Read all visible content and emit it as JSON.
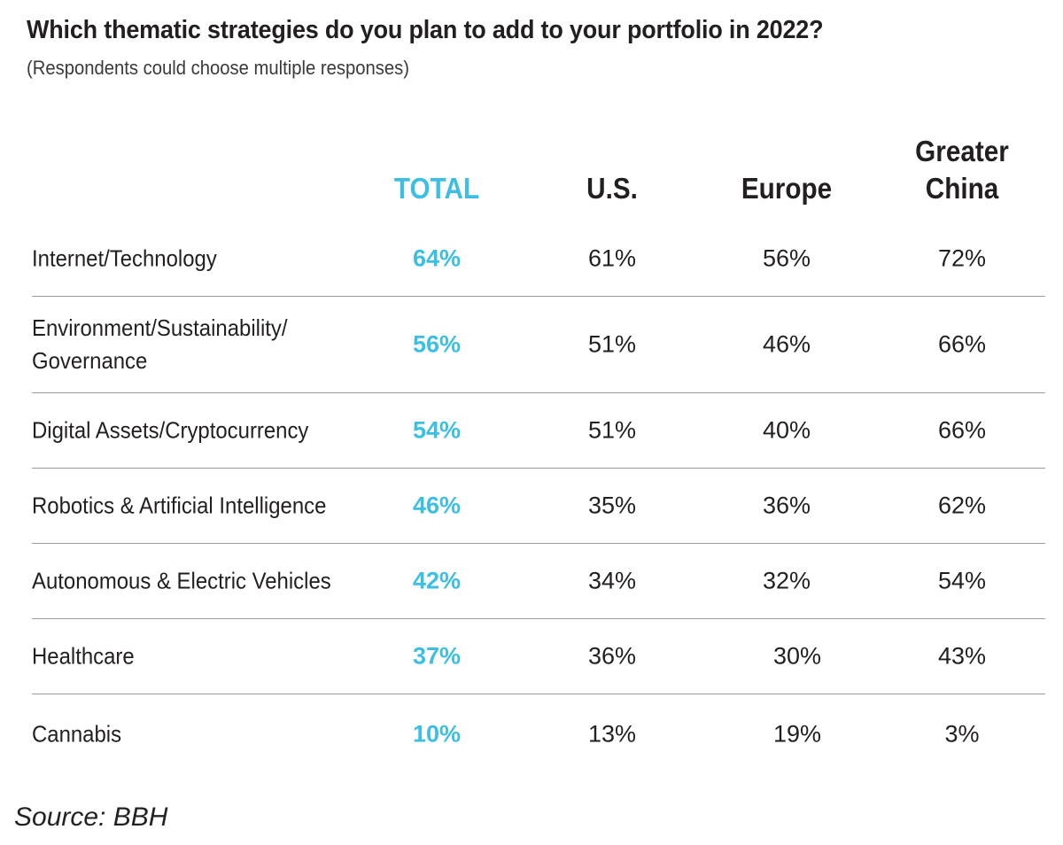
{
  "title": "Which thematic strategies do you plan to add to your portfolio in 2022?",
  "subtitle": "(Respondents could choose multiple responses)",
  "source": "Source: BBH",
  "colors": {
    "accent": "#3cbfe3",
    "text": "#231f20",
    "divider": "#9b9b9b"
  },
  "chart_data": {
    "type": "table",
    "title": "Which thematic strategies do you plan to add to your portfolio in 2022?",
    "subtitle": "(Respondents could choose multiple responses)",
    "columns": [
      "TOTAL",
      "U.S.",
      "Europe",
      "Greater China"
    ],
    "rows": [
      {
        "label": "Internet/Technology",
        "values": [
          "64%",
          "61%",
          "56%",
          "72%"
        ]
      },
      {
        "label": "Environment/Sustainability/\nGovernance",
        "values": [
          "56%",
          "51%",
          "46%",
          "66%"
        ]
      },
      {
        "label": "Digital Assets/Cryptocurrency",
        "values": [
          "54%",
          "51%",
          "40%",
          "66%"
        ]
      },
      {
        "label": "Robotics & Artificial Intelligence",
        "values": [
          "46%",
          "35%",
          "36%",
          "62%"
        ]
      },
      {
        "label": "Autonomous & Electric Vehicles",
        "values": [
          "42%",
          "34%",
          "32%",
          "54%"
        ]
      },
      {
        "label": "Healthcare",
        "values": [
          "37%",
          "36%",
          "30%",
          "43%"
        ]
      },
      {
        "label": "Cannabis",
        "values": [
          "10%",
          "13%",
          "19%",
          "3%"
        ]
      }
    ],
    "source": "Source: BBH"
  }
}
